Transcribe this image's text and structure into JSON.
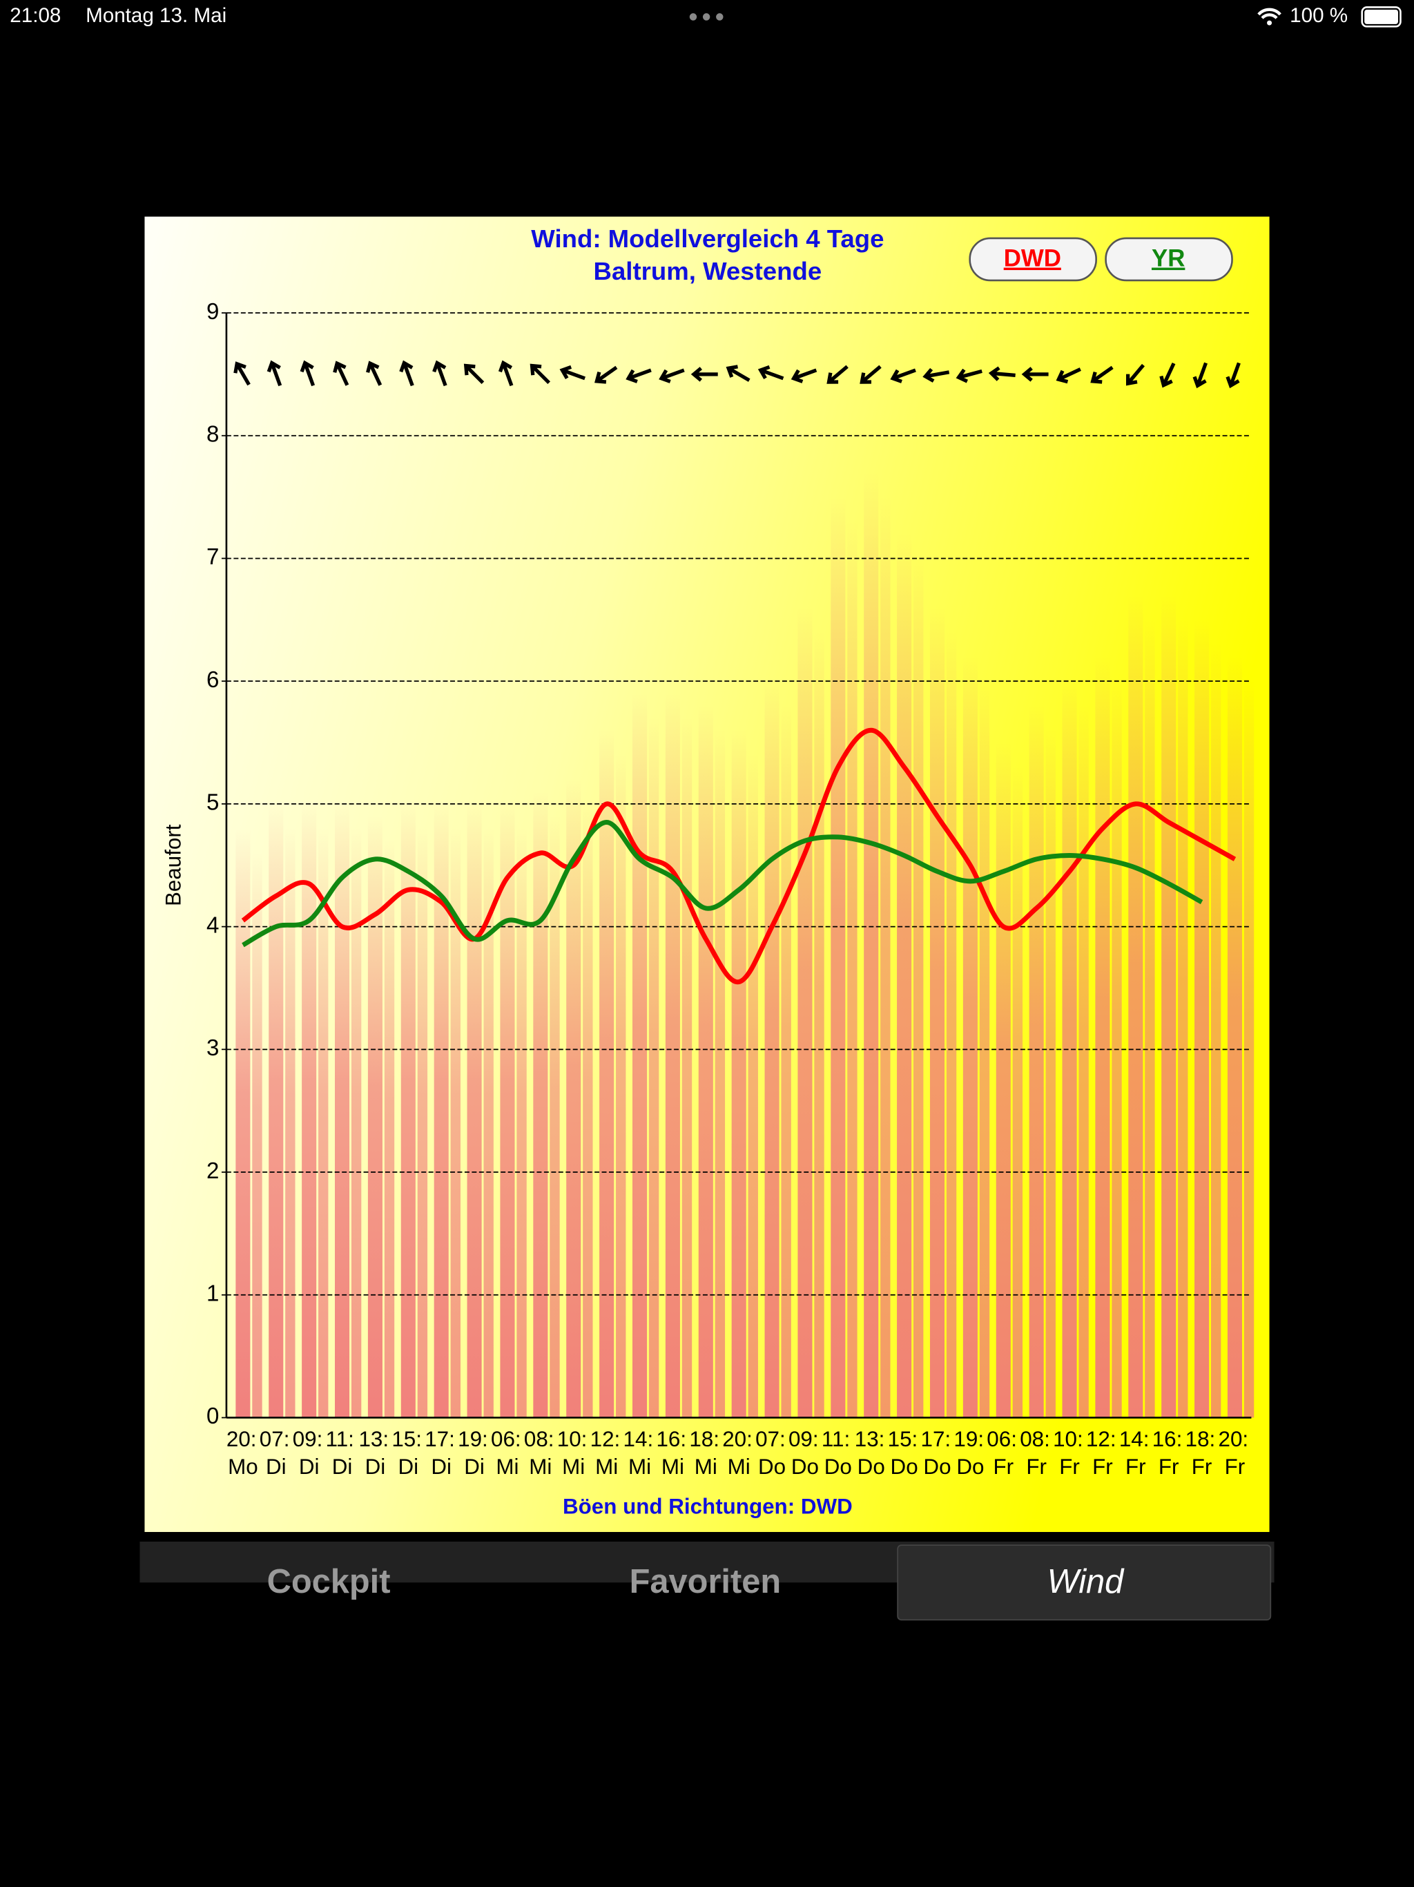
{
  "status_bar": {
    "time": "21:08",
    "date": "Montag 13. Mai",
    "battery": "100 %"
  },
  "tabs": [
    "Cockpit",
    "Favoriten",
    "Wind"
  ],
  "chart_data": {
    "type": "line",
    "title": "Wind: Modellvergleich 4 Tage",
    "subtitle": "Baltrum, Westende",
    "ylabel": "Beaufort",
    "xlabel": "Böen und Richtungen: DWD",
    "categories": [
      "20:",
      "07:",
      "09:",
      "11:",
      "13:",
      "15:",
      "17:",
      "19:",
      "06:",
      "08:",
      "10:",
      "12:",
      "14:",
      "16:",
      "18:",
      "20:",
      "07:",
      "09:",
      "11:",
      "13:",
      "15:",
      "17:",
      "19:",
      "06:",
      "08:",
      "10:",
      "12:",
      "14:",
      "16:",
      "18:",
      "20:"
    ],
    "days": [
      "Mo",
      "Di",
      "Di",
      "Di",
      "Di",
      "Di",
      "Di",
      "Di",
      "Mi",
      "Mi",
      "Mi",
      "Mi",
      "Mi",
      "Mi",
      "Mi",
      "Mi",
      "Do",
      "Do",
      "Do",
      "Do",
      "Do",
      "Do",
      "Do",
      "Fr",
      "Fr",
      "Fr",
      "Fr",
      "Fr",
      "Fr",
      "Fr",
      "Fr"
    ],
    "ylim": [
      0,
      9
    ],
    "yticks": [
      0,
      1,
      2,
      3,
      4,
      5,
      6,
      7,
      8,
      9
    ],
    "grid": true,
    "series": [
      {
        "name": "DWD",
        "color": "#ff0000",
        "values": [
          4.05,
          4.25,
          4.35,
          4.0,
          4.1,
          4.3,
          4.2,
          3.9,
          4.4,
          4.6,
          4.5,
          5.0,
          4.6,
          4.45,
          3.9,
          3.55,
          4.0,
          4.6,
          5.3,
          5.6,
          5.3,
          4.9,
          4.5,
          4.0,
          4.15,
          4.45,
          4.8,
          5.0,
          4.85,
          4.7,
          4.55
        ]
      },
      {
        "name": "YR",
        "color": "#118811",
        "values": [
          3.85,
          4.0,
          4.05,
          4.4,
          4.55,
          4.45,
          4.25,
          3.9,
          4.05,
          4.05,
          4.55,
          4.85,
          4.55,
          4.4,
          4.15,
          4.3,
          4.55,
          4.7,
          4.73,
          4.68,
          4.58,
          4.45,
          4.37,
          4.45,
          4.55,
          4.58,
          4.55,
          4.48,
          4.35,
          4.2,
          null
        ]
      }
    ],
    "gusts": {
      "color": "#f07a7a",
      "values": [
        4.8,
        5.0,
        5.0,
        5.0,
        4.9,
        5.0,
        5.0,
        5.0,
        5.0,
        5.1,
        5.2,
        5.6,
        5.9,
        5.9,
        5.8,
        5.6,
        6.0,
        6.6,
        7.5,
        7.7,
        7.2,
        6.6,
        6.2,
        5.5,
        5.8,
        6.0,
        6.2,
        6.7,
        6.7,
        6.5,
        6.2
      ]
    },
    "directions": [
      330,
      340,
      340,
      335,
      335,
      340,
      340,
      315,
      340,
      315,
      290,
      235,
      250,
      250,
      270,
      300,
      290,
      250,
      230,
      230,
      250,
      260,
      255,
      275,
      270,
      245,
      235,
      220,
      205,
      200,
      200
    ]
  }
}
